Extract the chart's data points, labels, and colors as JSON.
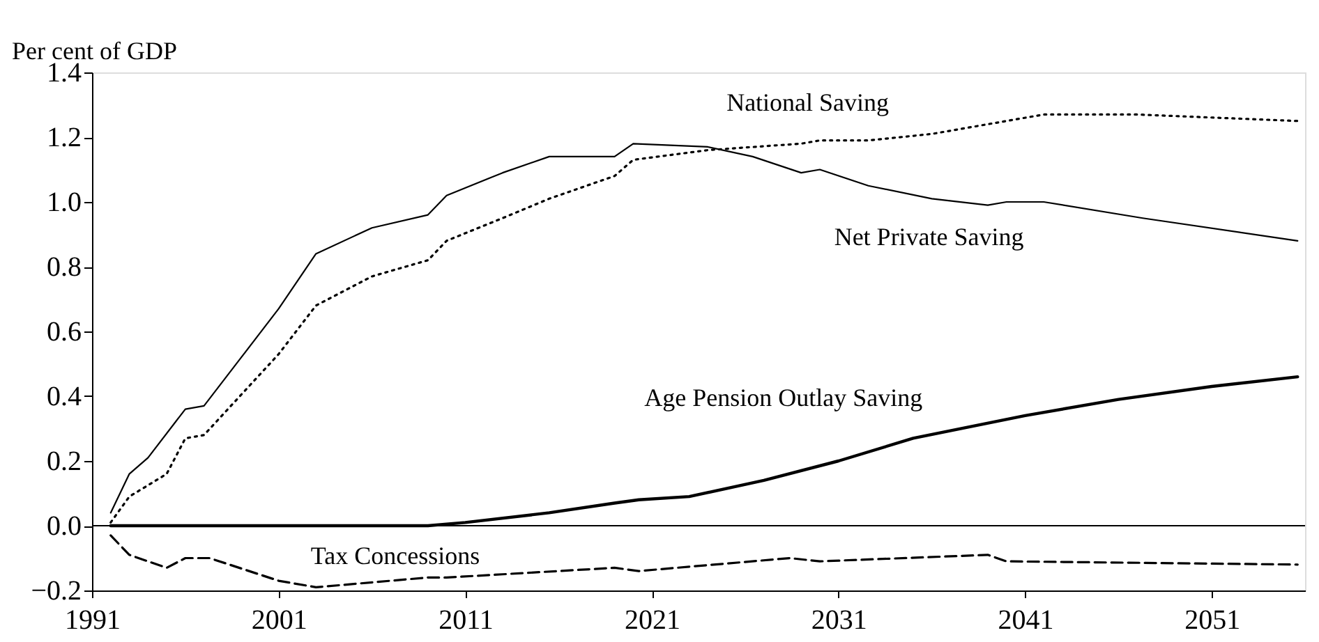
{
  "chart_data": {
    "type": "line",
    "ylabel": "Per cent of GDP",
    "xlim": [
      1991,
      2056
    ],
    "xticks": [
      1991,
      2001,
      2011,
      2021,
      2031,
      2041,
      2051
    ],
    "ylim": [
      -0.2,
      1.4
    ],
    "yticks": [
      {
        "value": -0.2,
        "label": "−0.2"
      },
      {
        "value": 0,
        "label": "0.0"
      },
      {
        "value": 0.2,
        "label": "0.2"
      },
      {
        "value": 0.4,
        "label": "0.4"
      },
      {
        "value": 0.6,
        "label": "0.6"
      },
      {
        "value": 0.8,
        "label": "0.8"
      },
      {
        "value": 1,
        "label": "1.0"
      },
      {
        "value": 1.2,
        "label": "1.2"
      },
      {
        "value": 1.4,
        "label": "1.4"
      }
    ],
    "grid": false,
    "legend": false,
    "marker": "none",
    "ref_lines": [
      {
        "axis": "y",
        "value": 0,
        "color": "#000000",
        "line_style": "solid"
      }
    ],
    "series": [
      {
        "name": "National Saving",
        "color": "#000000",
        "line_style": "dotted",
        "x": [
          1992,
          1993,
          1995,
          1996,
          1997,
          2001,
          2003,
          2006,
          2009,
          2010,
          2013,
          2015.5,
          2019,
          2020,
          2024,
          2029,
          2030,
          2032.6,
          2036,
          2040,
          2042,
          2047,
          2055.6
        ],
        "values": [
          0.01,
          0.09,
          0.16,
          0.27,
          0.28,
          0.53,
          0.68,
          0.77,
          0.82,
          0.88,
          0.95,
          1.01,
          1.08,
          1.13,
          1.16,
          1.18,
          1.19,
          1.19,
          1.21,
          1.25,
          1.27,
          1.27,
          1.25
        ]
      },
      {
        "name": "Net Private Saving",
        "color": "#000000",
        "line_style": "solid",
        "x": [
          1992,
          1993,
          1994,
          1996,
          1997,
          1999,
          2001,
          2003,
          2006,
          2009,
          2010,
          2013,
          2015.5,
          2019,
          2020,
          2024,
          2026.4,
          2029,
          2030,
          2032.6,
          2036,
          2039,
          2040,
          2042,
          2047.3,
          2055.6
        ],
        "values": [
          0.04,
          0.16,
          0.21,
          0.36,
          0.37,
          0.52,
          0.67,
          0.84,
          0.92,
          0.96,
          1.02,
          1.09,
          1.14,
          1.14,
          1.18,
          1.17,
          1.14,
          1.09,
          1.1,
          1.05,
          1.01,
          0.99,
          1.0,
          1.0,
          0.95,
          0.88
        ]
      },
      {
        "name": "Age Pension Outlay Saving",
        "color": "#000000",
        "line_style": "solid",
        "x": [
          1992,
          2001,
          2009,
          2011,
          2015.5,
          2019,
          2020.3,
          2023,
          2027,
          2031,
          2035,
          2041,
          2046,
          2051,
          2055.6
        ],
        "values": [
          0.0,
          0.0,
          0.0,
          0.01,
          0.04,
          0.07,
          0.08,
          0.09,
          0.14,
          0.2,
          0.27,
          0.34,
          0.39,
          0.43,
          0.46
        ]
      },
      {
        "name": "Tax Concessions",
        "color": "#000000",
        "line_style": "dashed",
        "x": [
          1992,
          1993,
          1995,
          1996,
          1997.3,
          2001,
          2003,
          2009,
          2010,
          2013,
          2019,
          2020.3,
          2028.4,
          2030,
          2039,
          2040,
          2055.6
        ],
        "values": [
          -0.03,
          -0.09,
          -0.13,
          -0.1,
          -0.1,
          -0.17,
          -0.19,
          -0.16,
          -0.16,
          -0.15,
          -0.13,
          -0.14,
          -0.1,
          -0.11,
          -0.09,
          -0.11,
          -0.12
        ]
      }
    ]
  }
}
